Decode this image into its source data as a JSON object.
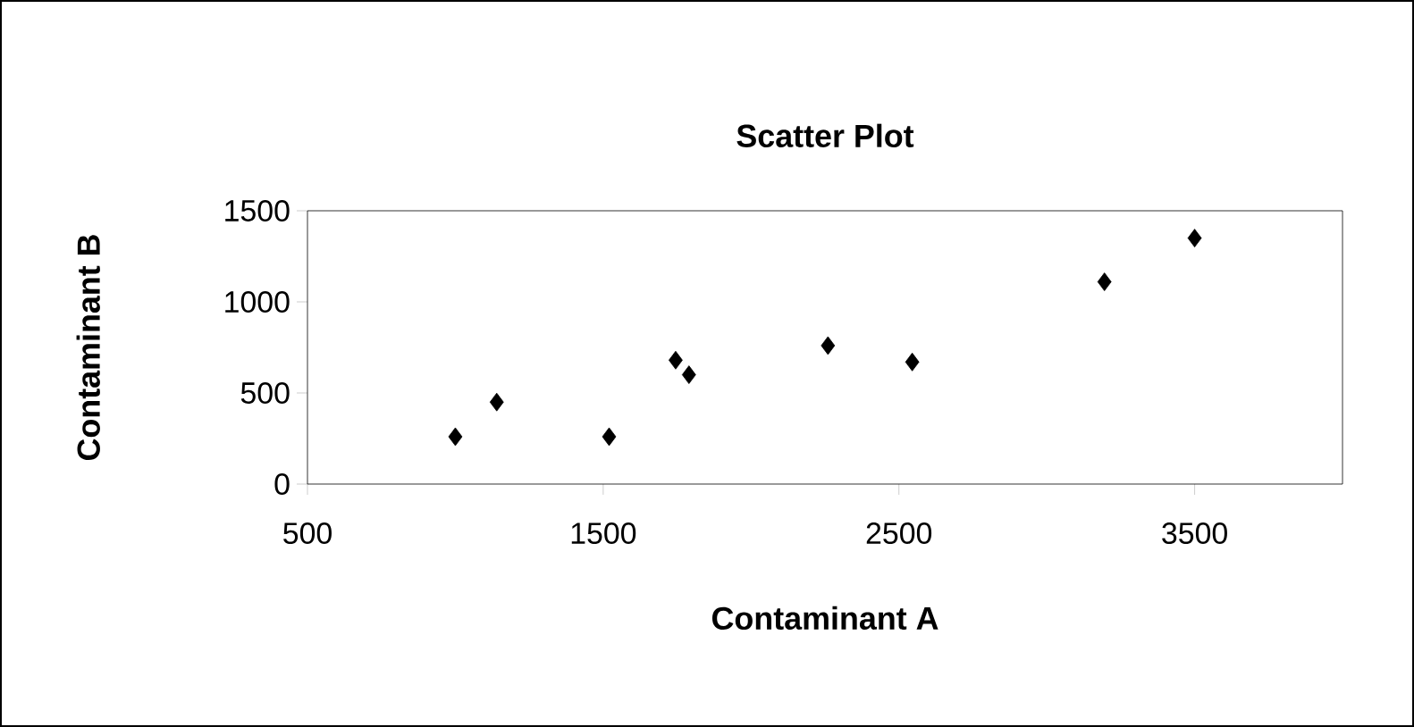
{
  "chart_data": {
    "type": "scatter",
    "title": "Scatter Plot",
    "xlabel": "Contaminant A",
    "ylabel": "Contaminant B",
    "x": [
      1000,
      1140,
      1520,
      1745,
      1790,
      2260,
      2545,
      3195,
      3500
    ],
    "values": [
      260,
      450,
      260,
      680,
      600,
      760,
      670,
      1110,
      1350
    ],
    "color": "#000000",
    "marker": "diamond",
    "xlim": [
      500,
      4000
    ],
    "xticks": [
      500,
      1500,
      2500,
      3500
    ],
    "ylim": [
      0,
      1500
    ],
    "yticks": [
      0,
      500,
      1000,
      1500
    ],
    "grid": false
  }
}
